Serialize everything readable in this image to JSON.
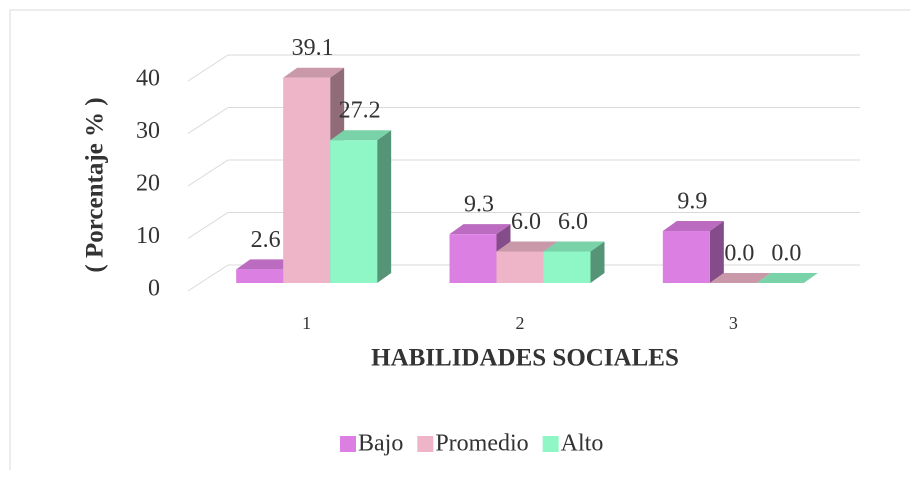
{
  "chart_data": {
    "type": "bar3d",
    "x_label": "HABILIDADES SOCIALES",
    "y_label": "( Porcentaje % )",
    "categories": [
      "1",
      "2",
      "3"
    ],
    "series": [
      {
        "name": "Bajo",
        "color": "#dc7fe2",
        "values": [
          2.6,
          9.3,
          9.9
        ],
        "value_labels": [
          "2.6",
          "9.3",
          "9.9"
        ]
      },
      {
        "name": "Promedio",
        "color": "#eeb4c7",
        "values": [
          39.1,
          6,
          0
        ],
        "value_labels": [
          "39.1",
          "6.0",
          "0.0"
        ]
      },
      {
        "name": "Alto",
        "color": "#8ff7c6",
        "values": [
          27.2,
          6,
          0
        ],
        "value_labels": [
          "27.2",
          "6.0",
          "0.0"
        ]
      }
    ],
    "ylim": [
      0,
      40
    ],
    "yticks": [
      0,
      10,
      20,
      30,
      40
    ],
    "grid": true,
    "legend": "bottom"
  }
}
